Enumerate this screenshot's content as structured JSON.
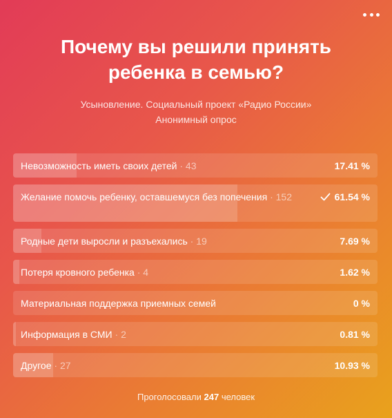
{
  "poll": {
    "title": "Почему вы решили принять ребенка в семью?",
    "subtitle_line1": "Усыновление. Социальный проект «Радио России»",
    "subtitle_line2": "Анонимный опрос",
    "options": [
      {
        "label": "Невозможность иметь своих детей",
        "count": "43",
        "percent": "17.41 %",
        "share": 0.1741,
        "selected": false
      },
      {
        "label": "Желание помочь ребенку, оставшемуся без попечения",
        "count": "152",
        "percent": "61.54 %",
        "share": 0.6154,
        "selected": true
      },
      {
        "label": "Родные дети выросли и разъехались",
        "count": "19",
        "percent": "7.69 %",
        "share": 0.0769,
        "selected": false
      },
      {
        "label": "Потеря кровного ребенка",
        "count": "4",
        "percent": "1.62 %",
        "share": 0.0162,
        "selected": false
      },
      {
        "label": "Материальная поддержка приемных семей",
        "count": "",
        "percent": "0 %",
        "share": 0,
        "selected": false
      },
      {
        "label": "Информация в СМИ",
        "count": "2",
        "percent": "0.81 %",
        "share": 0.0081,
        "selected": false
      },
      {
        "label": "Другое",
        "count": "27",
        "percent": "10.93 %",
        "share": 0.1093,
        "selected": false
      }
    ],
    "footer_prefix": "Проголосовали",
    "total_votes": "247",
    "footer_suffix": "человек",
    "menu_icon": "more-horizontal-icon",
    "selected_icon": "check-icon"
  }
}
